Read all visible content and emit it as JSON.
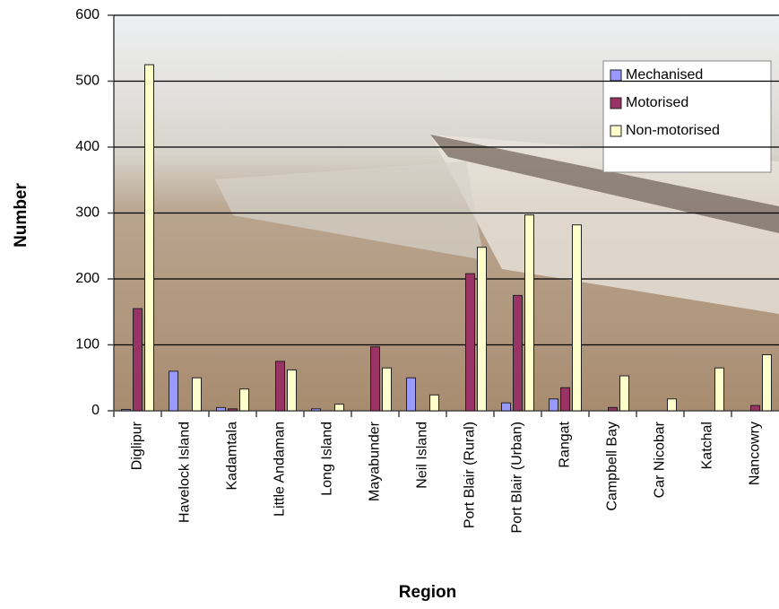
{
  "chart_data": {
    "type": "bar",
    "x_label": "Region",
    "y_label": "Number",
    "categories": [
      "Diglipur",
      "Havelock Island",
      "Kadamtala",
      "Little Andaman",
      "Long Island",
      "Mayabunder",
      "Neil Island",
      "Port Blair (Rural)",
      "Port Blair (Urban)",
      "Rangat",
      "Campbell Bay",
      "Car Nicobar",
      "Katchal",
      "Nancowry"
    ],
    "series": [
      {
        "name": "Mechanised",
        "color": "#9999ff",
        "values": [
          2,
          60,
          5,
          0,
          3,
          0,
          50,
          0,
          12,
          18,
          0,
          0,
          0,
          0
        ]
      },
      {
        "name": "Motorised",
        "color": "#993366",
        "values": [
          155,
          0,
          3,
          75,
          0,
          97,
          0,
          208,
          175,
          35,
          5,
          0,
          0,
          8
        ]
      },
      {
        "name": "Non-motorised",
        "color": "#ffffcc",
        "values": [
          525,
          50,
          33,
          62,
          10,
          65,
          24,
          248,
          297,
          282,
          53,
          18,
          65,
          85
        ]
      }
    ],
    "ylim": [
      0,
      600
    ],
    "yticks": [
      0,
      100,
      200,
      300,
      400,
      500,
      600
    ],
    "grid": true,
    "legend": "top-right"
  }
}
